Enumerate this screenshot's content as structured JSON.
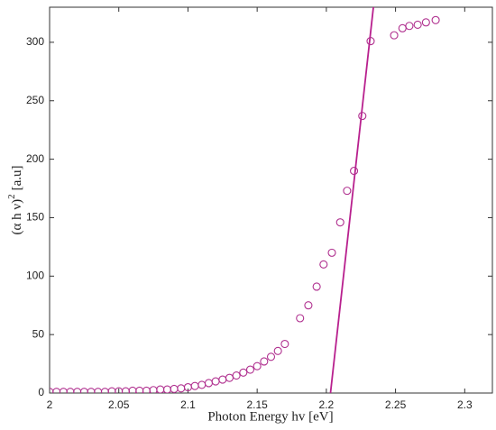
{
  "chart_data": {
    "type": "scatter",
    "xlabel": "Photon Energy hv [eV]",
    "ylabel": [
      "(α h ν)",
      "2",
      "[a.u]"
    ],
    "xlim": [
      2.0,
      2.32
    ],
    "ylim": [
      0,
      330
    ],
    "xticks": [
      2,
      2.05,
      2.1,
      2.15,
      2.2,
      2.25,
      2.3
    ],
    "yticks": [
      0,
      50,
      100,
      150,
      200,
      250,
      300
    ],
    "scatter": {
      "color": "#b0308f",
      "x": [
        2.0,
        2.005,
        2.01,
        2.015,
        2.02,
        2.025,
        2.03,
        2.035,
        2.04,
        2.045,
        2.05,
        2.055,
        2.06,
        2.065,
        2.07,
        2.075,
        2.08,
        2.085,
        2.09,
        2.095,
        2.1,
        2.105,
        2.11,
        2.115,
        2.12,
        2.125,
        2.13,
        2.135,
        2.14,
        2.145,
        2.15,
        2.155,
        2.16,
        2.165,
        2.17,
        2.181,
        2.187,
        2.193,
        2.198,
        2.204,
        2.21,
        2.215,
        2.22,
        2.226,
        2.232,
        2.249,
        2.255,
        2.26,
        2.266,
        2.272,
        2.279
      ],
      "values": [
        1,
        1,
        1,
        1,
        1,
        1,
        1,
        1,
        1,
        1.5,
        1.5,
        1.5,
        2,
        2,
        2,
        2.5,
        3,
        3,
        3.5,
        4,
        5,
        6,
        7,
        8.5,
        10,
        11.5,
        13,
        15,
        17.5,
        20,
        23,
        27,
        31,
        36,
        42,
        64,
        75,
        91,
        110,
        120,
        146,
        173,
        190,
        237,
        301,
        306,
        312,
        314,
        315,
        317,
        319
      ]
    },
    "fit": {
      "color": "#b8208e",
      "x": [
        2.203,
        2.234
      ],
      "values": [
        0,
        330
      ]
    }
  }
}
